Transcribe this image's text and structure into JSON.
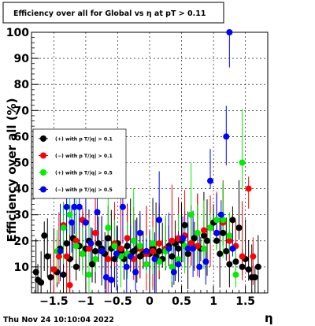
{
  "chart_data": {
    "type": "scatter",
    "title": "Efficiency over all for Global vs   η at pT > 0.11",
    "xlabel": "η",
    "ylabel": "Efficiency over all (%)",
    "xlim": [
      -1.85,
      1.85
    ],
    "ylim": [
      0,
      100
    ],
    "xticks": [
      -1.5,
      -1,
      -0.5,
      0,
      0.5,
      1,
      1.5
    ],
    "xtick_labels": [
      "−1.5",
      "−1",
      "−0.5",
      "0",
      "0.5",
      "1",
      "1.5"
    ],
    "yticks": [
      10,
      20,
      30,
      40,
      50,
      60,
      70,
      80,
      90,
      100
    ],
    "ytick_labels": [
      "10",
      "20",
      "30",
      "40",
      "50",
      "60",
      "70",
      "80",
      "90",
      "100"
    ],
    "grid": true,
    "legend_position": "left",
    "series": [
      {
        "name": "(+) with p T/|q| > 0.1",
        "color": "#000000",
        "points": [
          [
            -1.78,
            8
          ],
          [
            -1.75,
            5
          ],
          [
            -1.7,
            4
          ],
          [
            -1.65,
            22
          ],
          [
            -1.6,
            14
          ],
          [
            -1.55,
            6
          ],
          [
            -1.5,
            9
          ],
          [
            -1.45,
            8
          ],
          [
            -1.4,
            17
          ],
          [
            -1.35,
            7
          ],
          [
            -1.3,
            19
          ],
          [
            -1.25,
            13
          ],
          [
            -1.2,
            21
          ],
          [
            -1.15,
            10
          ],
          [
            -1.1,
            18
          ],
          [
            -1.05,
            15
          ],
          [
            -1.0,
            17
          ],
          [
            -0.95,
            20
          ],
          [
            -0.9,
            11
          ],
          [
            -0.85,
            16
          ],
          [
            -0.8,
            19
          ],
          [
            -0.75,
            17
          ],
          [
            -0.7,
            15
          ],
          [
            -0.65,
            21
          ],
          [
            -0.6,
            17
          ],
          [
            -0.55,
            13
          ],
          [
            -0.5,
            19
          ],
          [
            -0.45,
            16
          ],
          [
            -0.4,
            13
          ],
          [
            -0.35,
            18
          ],
          [
            -0.3,
            15
          ],
          [
            -0.25,
            16
          ],
          [
            -0.2,
            17
          ],
          [
            -0.15,
            14
          ],
          [
            -0.1,
            15
          ],
          [
            -0.05,
            16
          ],
          [
            0.0,
            15
          ],
          [
            0.05,
            17
          ],
          [
            0.1,
            14
          ],
          [
            0.15,
            16
          ],
          [
            0.2,
            13
          ],
          [
            0.25,
            16
          ],
          [
            0.3,
            18
          ],
          [
            0.35,
            14
          ],
          [
            0.4,
            19
          ],
          [
            0.45,
            17
          ],
          [
            0.5,
            20
          ],
          [
            0.55,
            26
          ],
          [
            0.6,
            15
          ],
          [
            0.65,
            19
          ],
          [
            0.7,
            21
          ],
          [
            0.75,
            18
          ],
          [
            0.8,
            17
          ],
          [
            0.85,
            22
          ],
          [
            0.9,
            20
          ],
          [
            0.95,
            25
          ],
          [
            1.0,
            27
          ],
          [
            1.05,
            20
          ],
          [
            1.1,
            15
          ],
          [
            1.15,
            23
          ],
          [
            1.2,
            16
          ],
          [
            1.25,
            11
          ],
          [
            1.3,
            28
          ],
          [
            1.35,
            12
          ],
          [
            1.4,
            25
          ],
          [
            1.45,
            10
          ],
          [
            1.5,
            13
          ],
          [
            1.55,
            9
          ],
          [
            1.6,
            6
          ],
          [
            1.65,
            6
          ],
          [
            1.7,
            10
          ]
        ]
      },
      {
        "name": "(−) with p T/|q| > 0.1",
        "color": "#ff0000",
        "points": [
          [
            -1.5,
            9
          ],
          [
            -1.42,
            14
          ],
          [
            -1.35,
            26
          ],
          [
            -1.3,
            14
          ],
          [
            -1.25,
            3
          ],
          [
            -1.15,
            20
          ],
          [
            -1.05,
            28
          ],
          [
            -0.95,
            17
          ],
          [
            -0.85,
            23
          ],
          [
            -0.75,
            16
          ],
          [
            -0.65,
            13
          ],
          [
            -0.55,
            19
          ],
          [
            -0.45,
            17
          ],
          [
            -0.35,
            21
          ],
          [
            -0.25,
            13
          ],
          [
            -0.15,
            17
          ],
          [
            -0.05,
            15
          ],
          [
            0.05,
            16
          ],
          [
            0.15,
            19
          ],
          [
            0.25,
            17
          ],
          [
            0.35,
            20
          ],
          [
            0.45,
            21
          ],
          [
            0.55,
            22
          ],
          [
            0.65,
            19
          ],
          [
            0.75,
            18
          ],
          [
            0.85,
            24
          ],
          [
            0.95,
            25
          ],
          [
            1.05,
            23
          ],
          [
            1.15,
            27
          ],
          [
            1.25,
            20
          ],
          [
            1.35,
            18
          ],
          [
            1.45,
            14
          ],
          [
            1.55,
            40
          ],
          [
            1.62,
            14
          ]
        ]
      },
      {
        "name": "(+) with p T/|q| > 0.5",
        "color": "#00ee00",
        "points": [
          [
            -1.45,
            16
          ],
          [
            -1.35,
            25
          ],
          [
            -1.25,
            30
          ],
          [
            -1.15,
            18
          ],
          [
            -1.05,
            15
          ],
          [
            -0.95,
            7
          ],
          [
            -0.85,
            13
          ],
          [
            -0.75,
            16
          ],
          [
            -0.65,
            25
          ],
          [
            -0.55,
            18
          ],
          [
            -0.45,
            14
          ],
          [
            -0.35,
            15
          ],
          [
            -0.25,
            20
          ],
          [
            -0.15,
            18
          ],
          [
            -0.05,
            11
          ],
          [
            0.05,
            19
          ],
          [
            0.15,
            12
          ],
          [
            0.25,
            16
          ],
          [
            0.35,
            10
          ],
          [
            0.45,
            13
          ],
          [
            0.55,
            18
          ],
          [
            0.65,
            30
          ],
          [
            0.75,
            23
          ],
          [
            0.85,
            17
          ],
          [
            0.95,
            25
          ],
          [
            1.05,
            28
          ],
          [
            1.15,
            28
          ],
          [
            1.25,
            22
          ],
          [
            1.35,
            7
          ],
          [
            1.45,
            50
          ]
        ]
      },
      {
        "name": "(−) with p T/|q| > 0.5",
        "color": "#0000ff",
        "points": [
          [
            -1.4,
            16
          ],
          [
            -1.3,
            33
          ],
          [
            -1.22,
            27
          ],
          [
            -1.18,
            33
          ],
          [
            -1.1,
            33
          ],
          [
            -1.0,
            27
          ],
          [
            -0.92,
            19
          ],
          [
            -0.82,
            31
          ],
          [
            -0.75,
            16
          ],
          [
            -0.68,
            6
          ],
          [
            -0.6,
            5
          ],
          [
            -0.52,
            15
          ],
          [
            -0.42,
            33
          ],
          [
            -0.36,
            10
          ],
          [
            -0.3,
            14
          ],
          [
            -0.22,
            8
          ],
          [
            -0.15,
            23
          ],
          [
            -0.05,
            16
          ],
          [
            0.08,
            13
          ],
          [
            0.15,
            28
          ],
          [
            0.3,
            17
          ],
          [
            0.38,
            8
          ],
          [
            0.45,
            11
          ],
          [
            0.52,
            21
          ],
          [
            0.6,
            17
          ],
          [
            0.68,
            17
          ],
          [
            0.78,
            10
          ],
          [
            0.88,
            12
          ],
          [
            0.95,
            43
          ],
          [
            1.05,
            23
          ],
          [
            1.12,
            30
          ],
          [
            1.2,
            60
          ],
          [
            1.25,
            100
          ],
          [
            1.3,
            17
          ]
        ]
      }
    ]
  },
  "footer": {
    "timestamp": "Thu Nov 24 10:10:04 2022"
  }
}
